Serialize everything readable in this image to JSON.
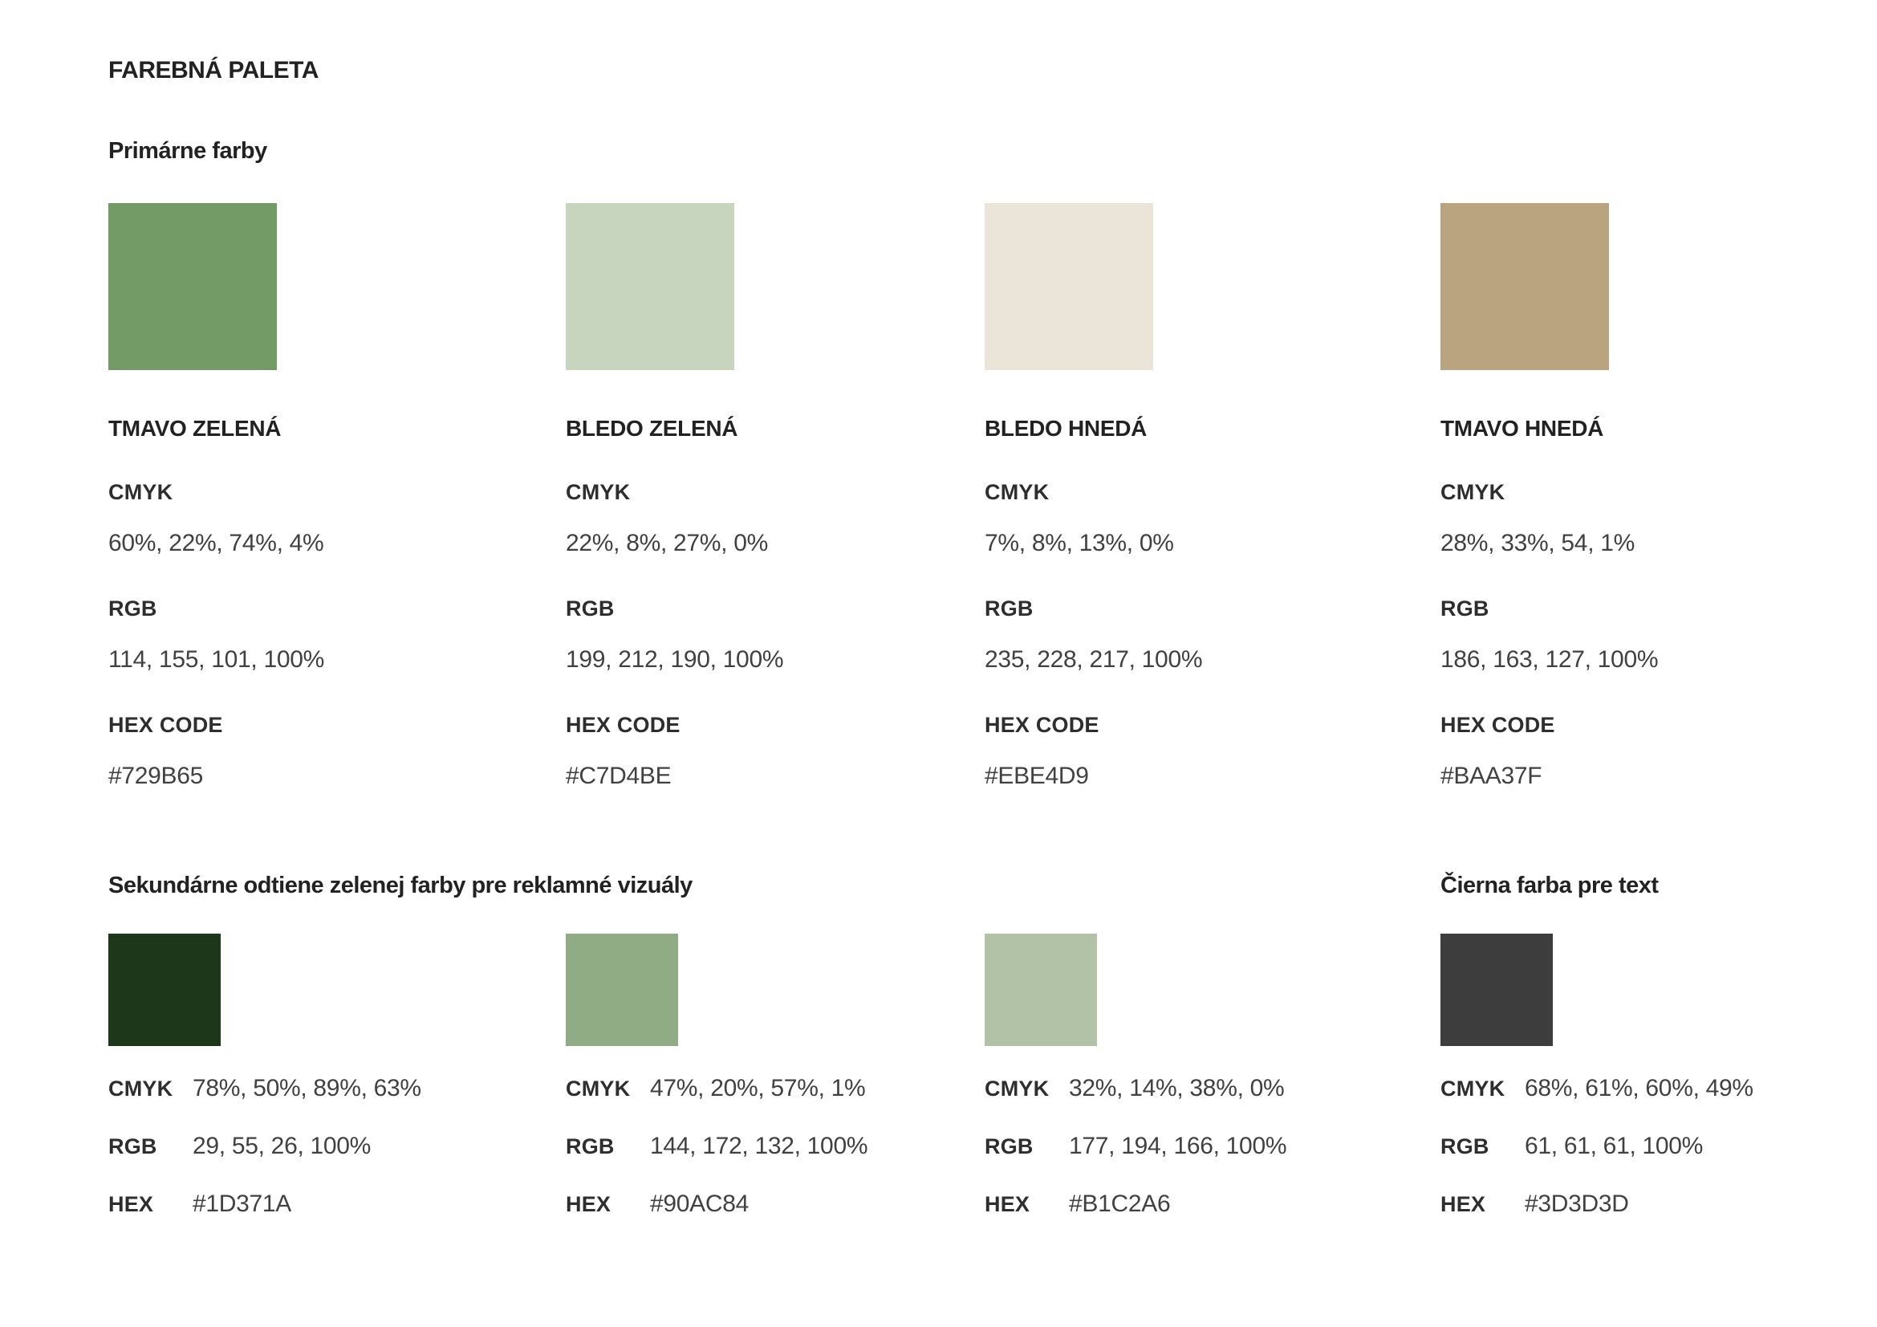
{
  "title": "FAREBNÁ PALETA",
  "primary": {
    "heading": "Primárne farby",
    "labels": {
      "cmyk": "CMYK",
      "rgb": "RGB",
      "hex": "HEX CODE"
    },
    "colors": [
      {
        "name": "TMAVO ZELENÁ",
        "swatch": "#729B65",
        "cmyk": "60%, 22%, 74%, 4%",
        "rgb": "114, 155, 101, 100%",
        "hex": "#729B65"
      },
      {
        "name": "BLEDO ZELENÁ",
        "swatch": "#C7D4BE",
        "cmyk": "22%, 8%, 27%, 0%",
        "rgb": "199, 212, 190, 100%",
        "hex": "#C7D4BE"
      },
      {
        "name": "BLEDO HNEDÁ",
        "swatch": "#EBE4D9",
        "cmyk": "7%, 8%, 13%, 0%",
        "rgb": "235, 228, 217, 100%",
        "hex": "#EBE4D9"
      },
      {
        "name": "TMAVO HNEDÁ",
        "swatch": "#BAA37F",
        "cmyk": "28%, 33%, 54, 1%",
        "rgb": "186, 163, 127, 100%",
        "hex": "#BAA37F"
      }
    ]
  },
  "secondary": {
    "heading": "Sekundárne odtiene zelenej farby pre reklamné vizuály",
    "black_heading": "Čierna farba pre text",
    "labels": {
      "cmyk": "CMYK",
      "rgb": "RGB",
      "hex": "HEX"
    },
    "colors": [
      {
        "swatch": "#1D371A",
        "cmyk": "78%, 50%, 89%, 63%",
        "rgb": "29, 55, 26, 100%",
        "hex": "#1D371A"
      },
      {
        "swatch": "#90AC84",
        "cmyk": "47%, 20%, 57%, 1%",
        "rgb": "144, 172, 132, 100%",
        "hex": "#90AC84"
      },
      {
        "swatch": "#B1C2A6",
        "cmyk": "32%, 14%, 38%, 0%",
        "rgb": "177, 194, 166, 100%",
        "hex": "#B1C2A6"
      },
      {
        "swatch": "#3D3D3D",
        "cmyk": "68%, 61%, 60%, 49%",
        "rgb": "61, 61, 61, 100%",
        "hex": "#3D3D3D"
      }
    ]
  }
}
